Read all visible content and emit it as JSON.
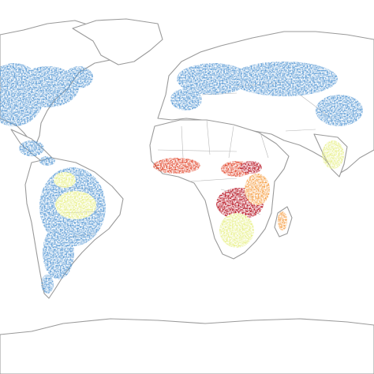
{
  "map": {
    "projection": "equirectangular-world",
    "legend": null,
    "palette": {
      "background": "#ffffff",
      "coastline": "#9a9a9a",
      "borders": "#b8b8b8",
      "very_low": "#3a6fbf",
      "low": "#5b9bd5",
      "medium_low": "#8fd0e6",
      "medium": "#e8f08a",
      "medium_high": "#f6a24a",
      "high": "#e2452a",
      "very_high": "#b50d1c"
    },
    "intensity_scale": [
      "very_low",
      "low",
      "medium_low",
      "medium",
      "medium_high",
      "high",
      "very_high"
    ],
    "regions": [
      {
        "name": "north-america",
        "level": "low"
      },
      {
        "name": "central-america",
        "level": "low"
      },
      {
        "name": "south-america",
        "level": "low"
      },
      {
        "name": "amazon-basin",
        "level": "medium"
      },
      {
        "name": "europe",
        "level": "low"
      },
      {
        "name": "west-africa",
        "level": "high"
      },
      {
        "name": "central-africa",
        "level": "very_high"
      },
      {
        "name": "east-africa",
        "level": "medium_high"
      },
      {
        "name": "southern-africa",
        "level": "medium"
      },
      {
        "name": "madagascar",
        "level": "medium_high"
      },
      {
        "name": "india",
        "level": "medium"
      },
      {
        "name": "central-asia",
        "level": "low"
      }
    ]
  }
}
